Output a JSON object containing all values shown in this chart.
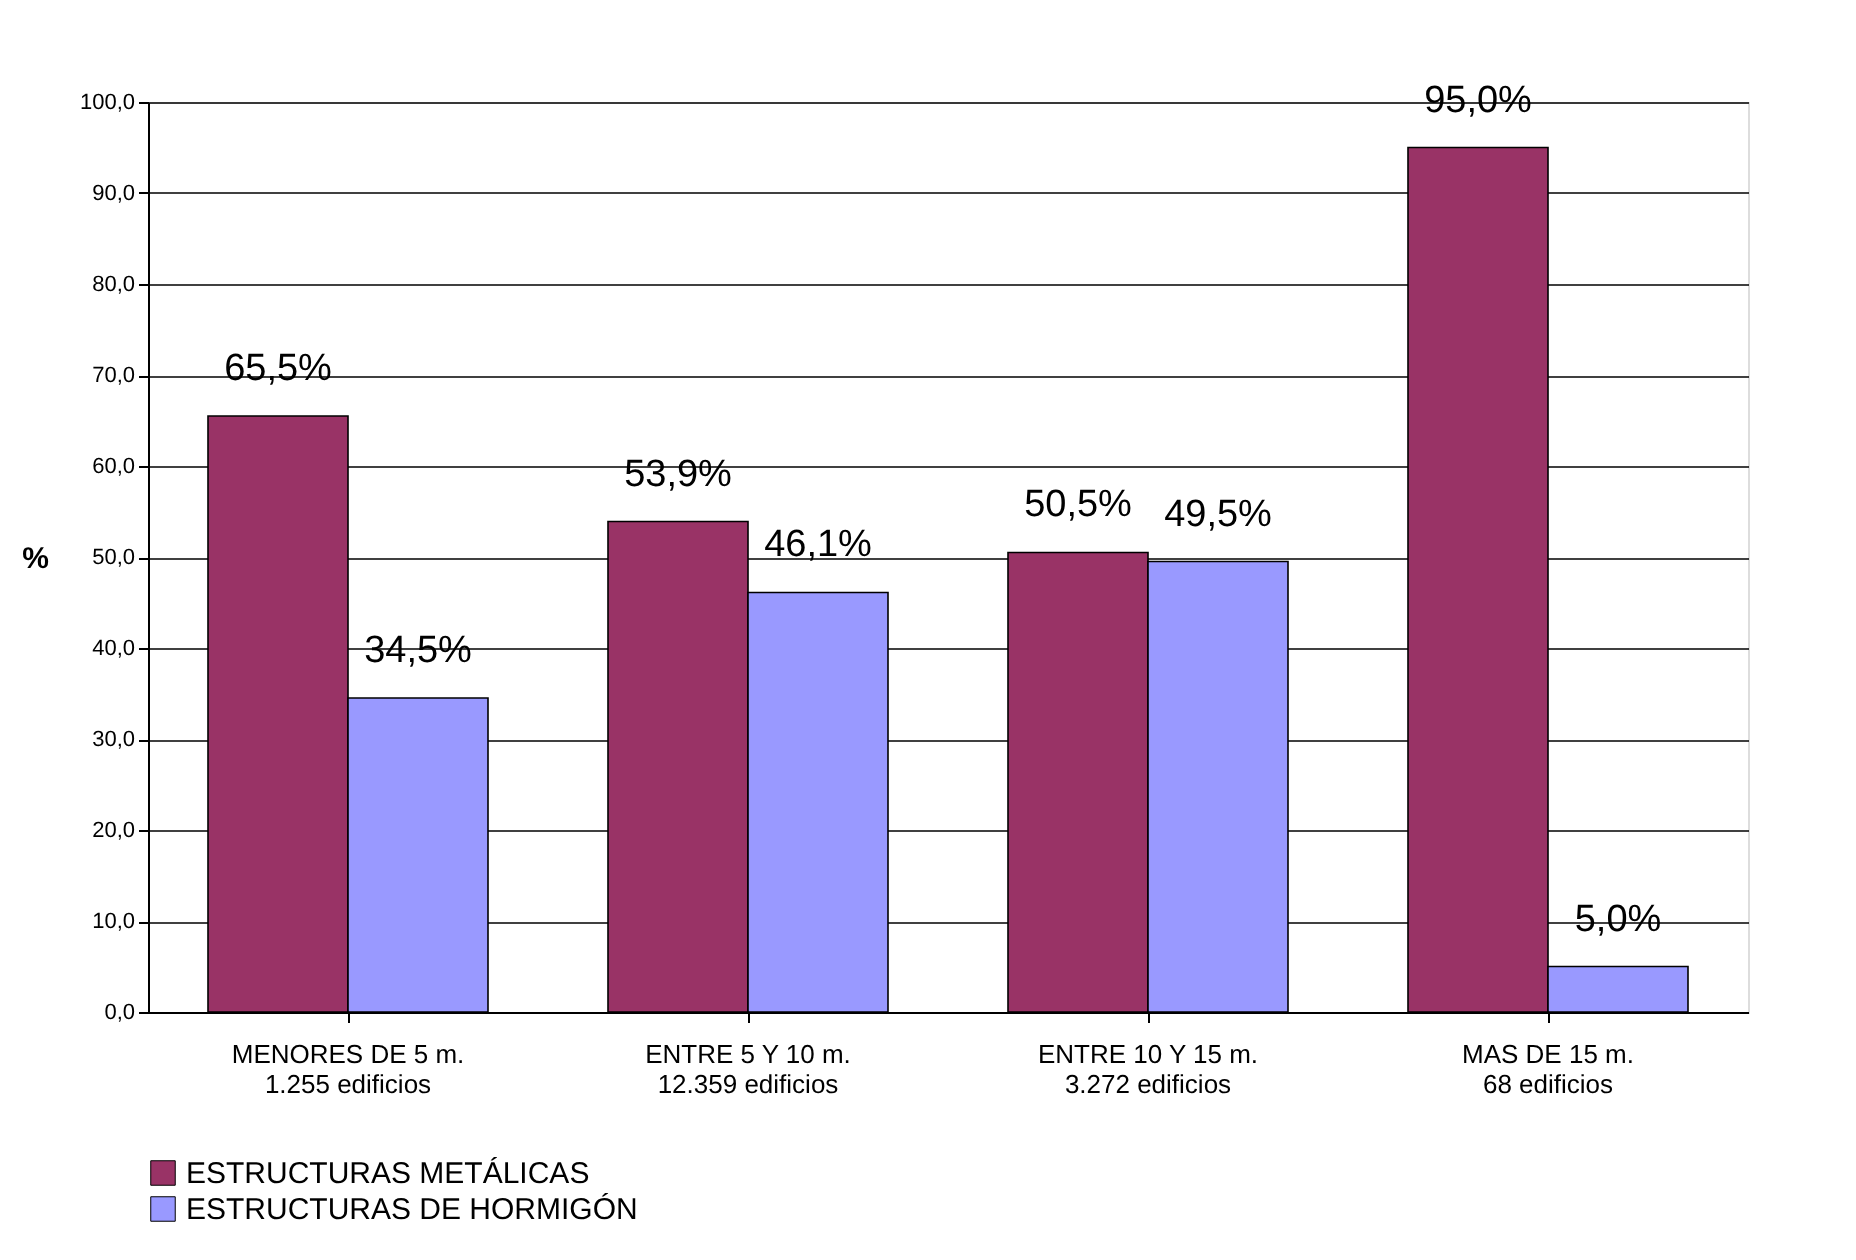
{
  "chart_data": {
    "type": "bar",
    "categories": [
      "MENORES DE 5 m.\n1.255 edificios",
      "ENTRE 5 Y 10 m.\n12.359 edificios",
      "ENTRE 10 Y 15 m.\n3.272 edificios",
      "MAS DE 15 m.\n68 edificios"
    ],
    "series": [
      {
        "name": "ESTRUCTURAS METÁLICAS",
        "color": "#993366",
        "values": [
          65.5,
          53.9,
          50.5,
          95.0
        ],
        "value_labels": [
          "65,5%",
          "53,9%",
          "50,5%",
          "95,0%"
        ]
      },
      {
        "name": "ESTRUCTURAS DE HORMIGÓN",
        "color": "#9999ff",
        "values": [
          34.5,
          46.1,
          49.5,
          5.0
        ],
        "value_labels": [
          "34,5%",
          "46,1%",
          "49,5%",
          "5,0%"
        ]
      }
    ],
    "ylabel": "%",
    "ylim": [
      0,
      100
    ],
    "yticks": [
      {
        "value": 0,
        "label": "0,0"
      },
      {
        "value": 10,
        "label": "10,0"
      },
      {
        "value": 20,
        "label": "20,0"
      },
      {
        "value": 30,
        "label": "30,0"
      },
      {
        "value": 40,
        "label": "40,0"
      },
      {
        "value": 50,
        "label": "50,0"
      },
      {
        "value": 60,
        "label": "60,0"
      },
      {
        "value": 70,
        "label": "70,0"
      },
      {
        "value": 80,
        "label": "80,0"
      },
      {
        "value": 90,
        "label": "90,0"
      },
      {
        "value": 100,
        "label": "100,0"
      }
    ],
    "grid": "y",
    "legend": "bottom"
  }
}
